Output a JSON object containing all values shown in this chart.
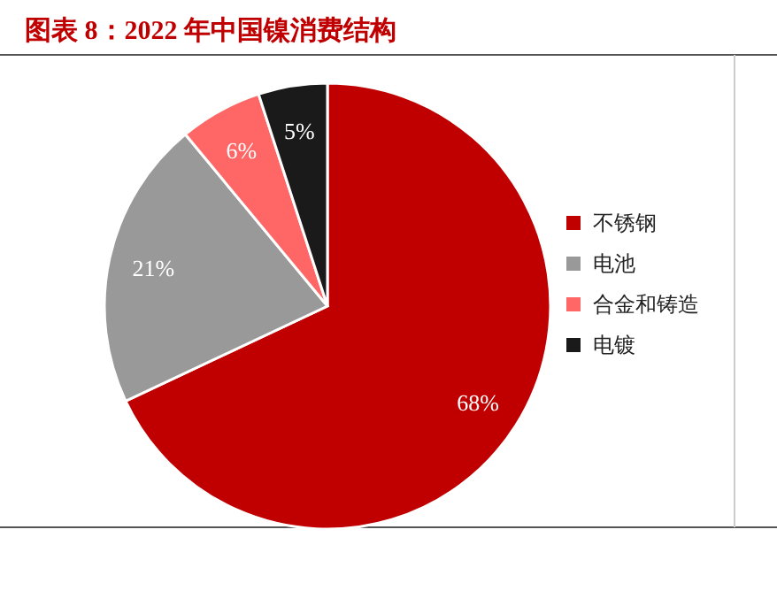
{
  "chart_data": {
    "type": "pie",
    "title": "图表 8：2022 年中国镍消费结构",
    "categories": [
      "不锈钢",
      "电池",
      "合金和铸造",
      "电镀"
    ],
    "values": [
      68,
      21,
      6,
      5
    ],
    "colors": [
      "#c00000",
      "#999999",
      "#ff6666",
      "#1a1a1a"
    ],
    "value_labels": [
      "68%",
      "21%",
      "6%",
      "5%"
    ],
    "legend": "right"
  }
}
